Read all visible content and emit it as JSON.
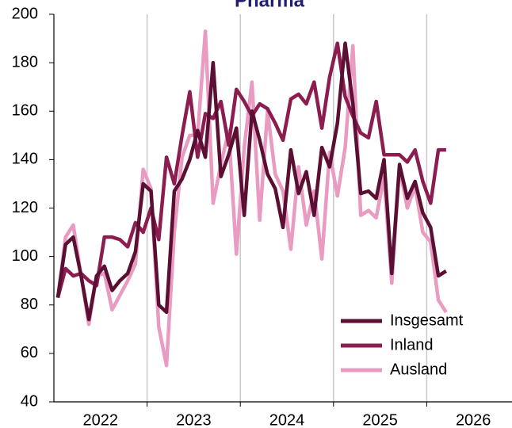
{
  "chart_data": {
    "type": "line",
    "title": "Pharma",
    "x": [
      2022.042,
      2022.125,
      2022.208,
      2022.292,
      2022.375,
      2022.458,
      2022.542,
      2022.625,
      2022.708,
      2022.792,
      2022.875,
      2022.958,
      2023.042,
      2023.125,
      2023.208,
      2023.292,
      2023.375,
      2023.458,
      2023.542,
      2023.625,
      2023.708,
      2023.792,
      2023.875,
      2023.958,
      2024.042,
      2024.125,
      2024.208,
      2024.292,
      2024.375,
      2024.458,
      2024.542,
      2024.625,
      2024.708,
      2024.792,
      2024.875,
      2024.958,
      2025.042,
      2025.125,
      2025.208,
      2025.292,
      2025.375,
      2025.458,
      2025.542,
      2025.625,
      2025.708,
      2025.792,
      2025.875,
      2025.958,
      2026.042,
      2026.125,
      2026.208
    ],
    "series": [
      {
        "name": "Insgesamt",
        "color": "#5a0f33",
        "values": [
          83,
          105,
          108,
          92,
          74,
          92,
          96,
          86,
          90,
          93,
          102,
          130,
          127,
          80,
          77,
          127,
          132,
          140,
          152,
          141,
          180,
          133,
          142,
          153,
          117,
          160,
          148,
          134,
          128,
          112,
          144,
          126,
          135,
          117,
          145,
          137,
          155,
          188,
          163,
          126,
          127,
          124,
          140,
          93,
          138,
          124,
          131,
          118,
          112,
          92,
          94
        ]
      },
      {
        "name": "Inland",
        "color": "#8c1d50",
        "values": [
          83,
          95,
          92,
          93,
          90,
          88,
          108,
          108,
          107,
          104,
          114,
          110,
          120,
          107,
          141,
          130,
          150,
          168,
          141,
          159,
          157,
          164,
          146,
          169,
          164,
          158,
          163,
          161,
          155,
          148,
          165,
          167,
          163,
          172,
          153,
          174,
          188,
          166,
          158,
          151,
          149,
          164,
          142,
          142,
          142,
          139,
          144,
          131,
          122,
          144,
          144
        ]
      },
      {
        "name": "Ausland",
        "color": "#e99bc2",
        "values": [
          83,
          108,
          113,
          92,
          72,
          92,
          93,
          78,
          84,
          90,
          97,
          136,
          128,
          71,
          55,
          110,
          141,
          150,
          150,
          193,
          122,
          138,
          152,
          101,
          145,
          172,
          115,
          160,
          134,
          127,
          103,
          137,
          113,
          127,
          99,
          143,
          125,
          145,
          187,
          117,
          119,
          116,
          133,
          89,
          137,
          120,
          129,
          110,
          106,
          82,
          77
        ]
      }
    ],
    "xlim": [
      2022,
      2027
    ],
    "xticks": [
      {
        "value": 2022.5,
        "label": "2022"
      },
      {
        "value": 2023.5,
        "label": "2023"
      },
      {
        "value": 2024.5,
        "label": "2024"
      },
      {
        "value": 2025.5,
        "label": "2025"
      },
      {
        "value": 2026.5,
        "label": "2026"
      }
    ],
    "ylim": [
      40,
      200
    ],
    "yticks": [
      40,
      60,
      80,
      100,
      120,
      140,
      160,
      180,
      200
    ],
    "legend": "lower right"
  }
}
